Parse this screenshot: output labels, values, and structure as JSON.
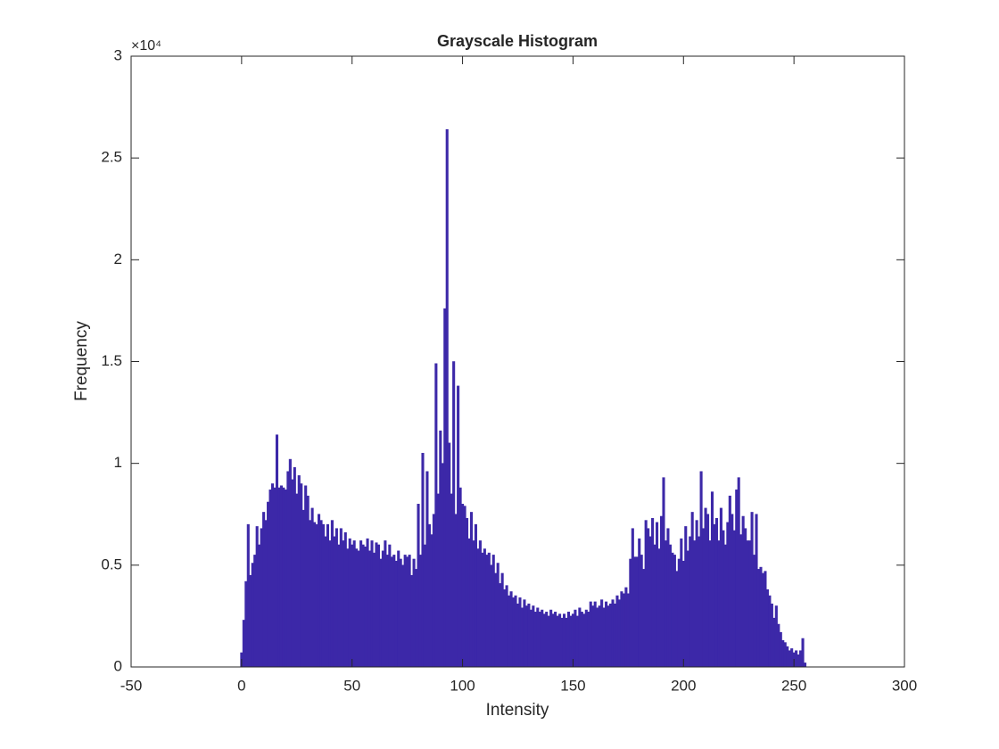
{
  "chart_data": {
    "type": "histogram",
    "title": "Grayscale Histogram",
    "x_label": "Intensity",
    "y_label": "Frequency",
    "y_exponent_label": "×10⁴",
    "color": "#3c28a8",
    "xlim": [
      -50,
      300
    ],
    "xticks": [
      -50,
      0,
      50,
      100,
      150,
      200,
      250,
      300
    ],
    "ylim": [
      0,
      3
    ],
    "yticks": [
      0,
      0.5,
      1,
      1.5,
      2,
      2.5,
      3
    ],
    "x": [
      0,
      1,
      2,
      3,
      4,
      5,
      6,
      7,
      8,
      9,
      10,
      11,
      12,
      13,
      14,
      15,
      16,
      17,
      18,
      19,
      20,
      21,
      22,
      23,
      24,
      25,
      26,
      27,
      28,
      29,
      30,
      31,
      32,
      33,
      34,
      35,
      36,
      37,
      38,
      39,
      40,
      41,
      42,
      43,
      44,
      45,
      46,
      47,
      48,
      49,
      50,
      51,
      52,
      53,
      54,
      55,
      56,
      57,
      58,
      59,
      60,
      61,
      62,
      63,
      64,
      65,
      66,
      67,
      68,
      69,
      70,
      71,
      72,
      73,
      74,
      75,
      76,
      77,
      78,
      79,
      80,
      81,
      82,
      83,
      84,
      85,
      86,
      87,
      88,
      89,
      90,
      91,
      92,
      93,
      94,
      95,
      96,
      97,
      98,
      99,
      100,
      101,
      102,
      103,
      104,
      105,
      106,
      107,
      108,
      109,
      110,
      111,
      112,
      113,
      114,
      115,
      116,
      117,
      118,
      119,
      120,
      121,
      122,
      123,
      124,
      125,
      126,
      127,
      128,
      129,
      130,
      131,
      132,
      133,
      134,
      135,
      136,
      137,
      138,
      139,
      140,
      141,
      142,
      143,
      144,
      145,
      146,
      147,
      148,
      149,
      150,
      151,
      152,
      153,
      154,
      155,
      156,
      157,
      158,
      159,
      160,
      161,
      162,
      163,
      164,
      165,
      166,
      167,
      168,
      169,
      170,
      171,
      172,
      173,
      174,
      175,
      176,
      177,
      178,
      179,
      180,
      181,
      182,
      183,
      184,
      185,
      186,
      187,
      188,
      189,
      190,
      191,
      192,
      193,
      194,
      195,
      196,
      197,
      198,
      199,
      200,
      201,
      202,
      203,
      204,
      205,
      206,
      207,
      208,
      209,
      210,
      211,
      212,
      213,
      214,
      215,
      216,
      217,
      218,
      219,
      220,
      221,
      222,
      223,
      224,
      225,
      226,
      227,
      228,
      229,
      230,
      231,
      232,
      233,
      234,
      235,
      236,
      237,
      238,
      239,
      240,
      241,
      242,
      243,
      244,
      245,
      246,
      247,
      248,
      249,
      250,
      251,
      252,
      253,
      254,
      255
    ],
    "values": [
      0.07,
      0.23,
      0.42,
      0.7,
      0.45,
      0.51,
      0.55,
      0.69,
      0.6,
      0.68,
      0.76,
      0.72,
      0.81,
      0.87,
      0.9,
      0.88,
      1.14,
      0.88,
      0.89,
      0.88,
      0.87,
      0.96,
      1.02,
      0.92,
      0.98,
      0.85,
      0.94,
      0.9,
      0.77,
      0.89,
      0.84,
      0.72,
      0.78,
      0.71,
      0.7,
      0.75,
      0.72,
      0.7,
      0.64,
      0.7,
      0.62,
      0.72,
      0.64,
      0.68,
      0.6,
      0.68,
      0.62,
      0.66,
      0.58,
      0.63,
      0.6,
      0.62,
      0.58,
      0.57,
      0.62,
      0.6,
      0.59,
      0.63,
      0.57,
      0.62,
      0.56,
      0.61,
      0.6,
      0.53,
      0.57,
      0.62,
      0.55,
      0.6,
      0.54,
      0.55,
      0.52,
      0.57,
      0.53,
      0.5,
      0.55,
      0.54,
      0.55,
      0.45,
      0.53,
      0.48,
      0.8,
      0.55,
      1.05,
      0.6,
      0.96,
      0.7,
      0.65,
      0.75,
      1.49,
      0.85,
      1.16,
      1.0,
      1.76,
      2.64,
      1.1,
      0.85,
      1.5,
      0.75,
      1.38,
      0.88,
      0.8,
      0.79,
      0.73,
      0.63,
      0.76,
      0.62,
      0.7,
      0.58,
      0.62,
      0.56,
      0.58,
      0.55,
      0.56,
      0.5,
      0.55,
      0.46,
      0.51,
      0.41,
      0.46,
      0.38,
      0.4,
      0.35,
      0.37,
      0.34,
      0.35,
      0.31,
      0.34,
      0.29,
      0.33,
      0.3,
      0.31,
      0.28,
      0.3,
      0.27,
      0.29,
      0.27,
      0.28,
      0.26,
      0.27,
      0.25,
      0.28,
      0.26,
      0.27,
      0.25,
      0.26,
      0.24,
      0.26,
      0.24,
      0.27,
      0.25,
      0.26,
      0.28,
      0.25,
      0.29,
      0.27,
      0.26,
      0.28,
      0.27,
      0.32,
      0.3,
      0.32,
      0.29,
      0.3,
      0.33,
      0.29,
      0.32,
      0.3,
      0.31,
      0.33,
      0.31,
      0.35,
      0.33,
      0.37,
      0.36,
      0.39,
      0.36,
      0.53,
      0.68,
      0.54,
      0.54,
      0.63,
      0.55,
      0.48,
      0.72,
      0.68,
      0.64,
      0.73,
      0.6,
      0.71,
      0.58,
      0.74,
      0.93,
      0.62,
      0.68,
      0.6,
      0.56,
      0.55,
      0.47,
      0.53,
      0.63,
      0.52,
      0.69,
      0.57,
      0.64,
      0.76,
      0.62,
      0.72,
      0.64,
      0.96,
      0.68,
      0.78,
      0.75,
      0.62,
      0.86,
      0.7,
      0.73,
      0.62,
      0.78,
      0.67,
      0.6,
      0.71,
      0.84,
      0.75,
      0.67,
      0.87,
      0.93,
      0.65,
      0.74,
      0.68,
      0.62,
      0.62,
      0.76,
      0.55,
      0.75,
      0.48,
      0.49,
      0.46,
      0.47,
      0.38,
      0.35,
      0.31,
      0.24,
      0.3,
      0.21,
      0.17,
      0.13,
      0.12,
      0.1,
      0.08,
      0.09,
      0.07,
      0.08,
      0.06,
      0.08,
      0.14,
      0.02
    ]
  }
}
